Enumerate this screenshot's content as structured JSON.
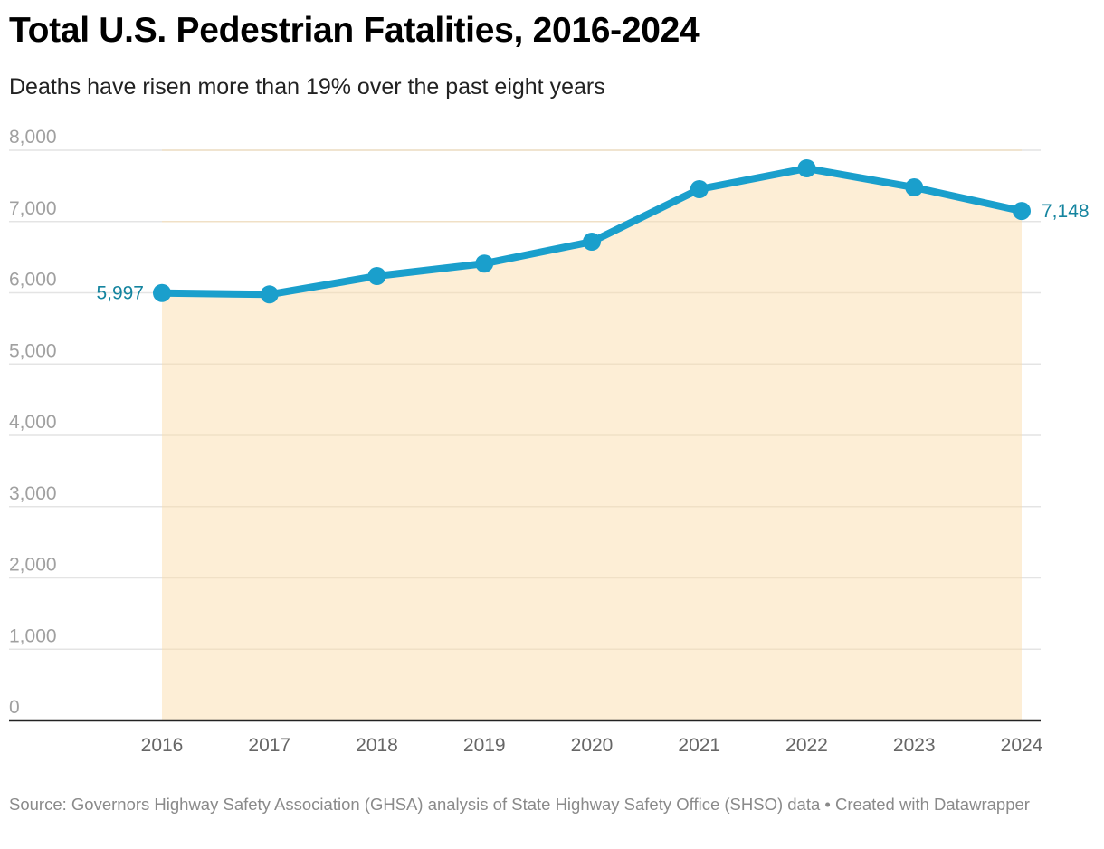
{
  "header": {
    "title": "Total U.S. Pedestrian Fatalities, 2016-2024",
    "subtitle": "Deaths have risen more than 19% over the past eight years"
  },
  "footer": {
    "source": "Source: Governors Highway Safety Association (GHSA) analysis of State Highway Safety Office (SHSO) data • Created with Datawrapper"
  },
  "colors": {
    "line": "#1a9fcc",
    "area": "#fdeed6",
    "label": "#14849f",
    "grid": "#e4e4e4",
    "axis": "#222222"
  },
  "chart_data": {
    "type": "area",
    "title": "Total U.S. Pedestrian Fatalities, 2016-2024",
    "subtitle": "Deaths have risen more than 19% over the past eight years",
    "xlabel": "",
    "ylabel": "",
    "x": [
      "2016",
      "2017",
      "2018",
      "2019",
      "2020",
      "2021",
      "2022",
      "2023",
      "2024"
    ],
    "series": [
      {
        "name": "Pedestrian fatalities",
        "values": [
          5997,
          5977,
          6235,
          6410,
          6717,
          7454,
          7746,
          7479,
          7148
        ]
      }
    ],
    "ylim": [
      0,
      8000
    ],
    "yticks": [
      0,
      1000,
      2000,
      3000,
      4000,
      5000,
      6000,
      7000,
      8000
    ],
    "ytick_labels": [
      "0",
      "1,000",
      "2,000",
      "3,000",
      "4,000",
      "5,000",
      "6,000",
      "7,000",
      "8,000"
    ],
    "grid": true,
    "legend": "none",
    "annotations": [
      {
        "x": "2016",
        "text": "5,997",
        "side": "left"
      },
      {
        "x": "2024",
        "text": "7,148",
        "side": "right"
      }
    ]
  }
}
